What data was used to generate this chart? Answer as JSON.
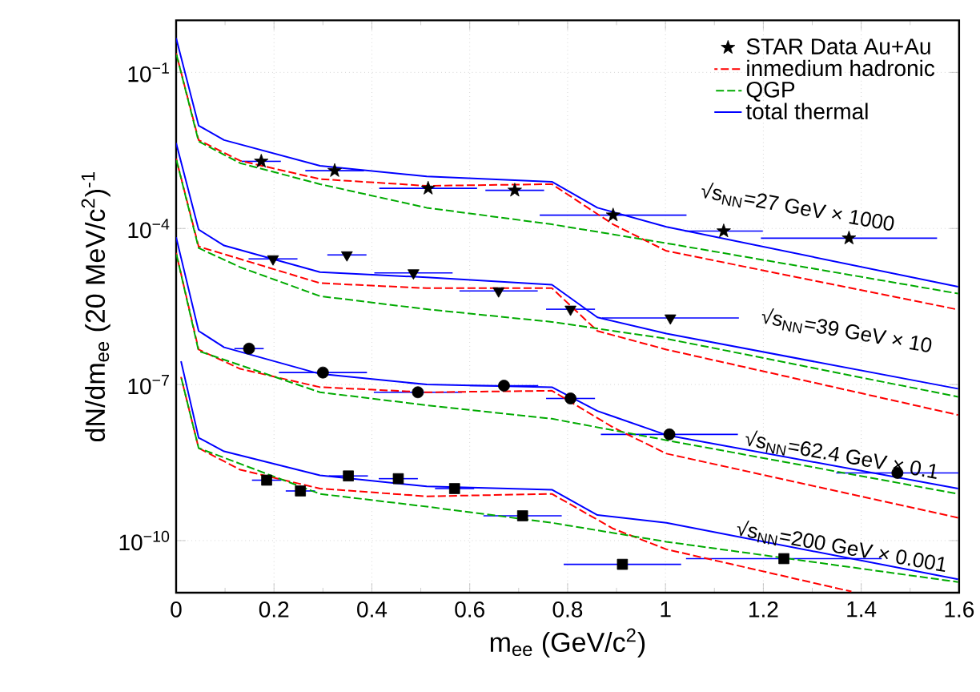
{
  "chart_data": {
    "type": "scatter",
    "xlabel": "m$_{ee}$ (GeV/c$^{2}$)",
    "ylabel": "dN/dm$_{ee}$ (20 MeV/c$^{2}$)$^{-1}$",
    "log": "y",
    "grid": true,
    "legend": "top right",
    "xlim": [
      0,
      1.6
    ],
    "ylim": [
      1e-11,
      1
    ],
    "xticks": [
      0,
      0.2,
      0.4,
      0.6,
      0.8,
      1,
      1.2,
      1.4,
      1.6
    ],
    "yticks": [
      {
        "value": 0.1,
        "label": "10$^{−1}$"
      },
      {
        "value": 0.0001,
        "label": "10$^{−4}$"
      },
      {
        "value": 1e-07,
        "label": "10$^{−7}$"
      },
      {
        "value": 1e-10,
        "label": "10$^{−10}$"
      }
    ],
    "series": [
      {
        "name": "STAR Data Au+Au",
        "color": "#000000",
        "marker": "star",
        "x": [
          0.174,
          0.324,
          0.515,
          0.692,
          0.893,
          1.119,
          1.375
        ],
        "values": [
          0.00195,
          0.00129,
          0.00059,
          0.00054,
          0.00018,
          8.9e-05,
          6.5e-05
        ],
        "xerrors": [
          0.04,
          0.06,
          0.1,
          0.06,
          0.15,
          0.08,
          0.18
        ]
      },
      {
        "color": "#000000",
        "marker": "triangle",
        "x": [
          0.198,
          0.349,
          0.485,
          0.659,
          0.806,
          1.01
        ],
        "values": [
          2.6e-05,
          3.1e-05,
          1.4e-05,
          6.3e-06,
          2.8e-06,
          1.9e-06
        ],
        "xerrors": [
          0.05,
          0.04,
          0.08,
          0.08,
          0.05,
          0.14
        ]
      },
      {
        "color": "#000000",
        "marker": "circle",
        "x": [
          0.149,
          0.3,
          0.494,
          0.67,
          0.806,
          1.008,
          1.474
        ],
        "values": [
          4.9e-07,
          1.7e-07,
          7.1e-08,
          9.5e-08,
          5.4e-08,
          1.1e-08,
          2e-09
        ],
        "xerrors": [
          0.03,
          0.09,
          0.09,
          0.07,
          0.05,
          0.14,
          0.125
        ]
      },
      {
        "color": "#000000",
        "marker": "square",
        "x": [
          0.185,
          0.254,
          0.352,
          0.454,
          0.569,
          0.708,
          0.912,
          1.242
        ],
        "values": [
          1.45e-09,
          9e-10,
          1.75e-09,
          1.55e-09,
          1e-09,
          3e-10,
          3.5e-11,
          4.5e-11
        ],
        "xerrors": [
          0.03,
          0.03,
          0.04,
          0.04,
          0.04,
          0.08,
          0.12,
          0.2
        ]
      },
      {
        "name": "inmedium hadronic",
        "type": "line",
        "color": "#ff0000",
        "line_style": "dashed",
        "x": [
          0,
          0.046,
          0.131,
          0.294,
          0.512,
          0.768,
          0.893,
          1.002,
          1.598
        ],
        "values": [
          0.234,
          0.005,
          0.002,
          0.00089,
          0.00066,
          0.00071,
          0.00012,
          3.7e-05,
          2.75e-06
        ]
      },
      {
        "name": "QGP",
        "type": "line",
        "color": "#00aa00",
        "line_style": "dashed",
        "x": [
          0,
          0.046,
          0.131,
          0.294,
          0.512,
          0.768,
          1.002,
          1.598
        ],
        "values": [
          0.234,
          0.0047,
          0.0018,
          0.00071,
          0.00025,
          0.00012,
          5.2e-05,
          5.6e-06
        ]
      },
      {
        "name": "total thermal",
        "type": "line",
        "color": "#0000ff",
        "line_style": "solid",
        "x": [
          0,
          0.046,
          0.098,
          0.294,
          0.512,
          0.768,
          0.861,
          1.002,
          1.598
        ],
        "values": [
          0.457,
          0.0095,
          0.005,
          0.0016,
          0.001,
          0.00079,
          0.00025,
          0.000107,
          7.6e-06
        ]
      },
      {
        "type": "line",
        "color": "#ff0000",
        "line_style": "dashed",
        "x": [
          0,
          0.046,
          0.294,
          0.512,
          0.768,
          0.861,
          1.002,
          1.598
        ],
        "values": [
          0.0022,
          4.5e-05,
          8.9e-06,
          7.1e-06,
          7.1e-06,
          1.07e-06,
          4.7e-07,
          2.6e-08
        ]
      },
      {
        "type": "line",
        "color": "#00aa00",
        "line_style": "dashed",
        "x": [
          0,
          0.046,
          0.131,
          0.294,
          0.512,
          0.768,
          1.002,
          1.598
        ],
        "values": [
          0.0022,
          4.2e-05,
          1.8e-05,
          5e-06,
          2.8e-06,
          1.6e-06,
          7.6e-07,
          5.8e-08
        ]
      },
      {
        "type": "line",
        "color": "#0000ff",
        "line_style": "solid",
        "x": [
          0,
          0.046,
          0.098,
          0.294,
          0.512,
          0.768,
          0.861,
          1.002,
          1.598
        ],
        "values": [
          0.0044,
          9.5e-05,
          4.7e-05,
          1.45e-05,
          1.15e-05,
          8.3e-06,
          1.95e-06,
          9.5e-07,
          8.3e-08
        ]
      },
      {
        "type": "line",
        "color": "#ff0000",
        "line_style": "dashed",
        "x": [
          0,
          0.046,
          0.131,
          0.294,
          0.512,
          0.768,
          0.893,
          1.002,
          1.598
        ],
        "values": [
          3.4e-05,
          4.7e-07,
          2e-07,
          8.9e-08,
          7.1e-08,
          7.6e-08,
          1.5e-08,
          4.7e-09,
          2.75e-10
        ]
      },
      {
        "type": "line",
        "color": "#00aa00",
        "line_style": "dashed",
        "x": [
          0,
          0.046,
          0.294,
          0.512,
          0.768,
          1.002,
          1.598
        ],
        "values": [
          3.4e-05,
          4.4e-07,
          7.1e-08,
          4e-08,
          2.2e-08,
          8.5e-09,
          7.9e-10
        ]
      },
      {
        "type": "line",
        "color": "#0000ff",
        "line_style": "solid",
        "x": [
          0,
          0.046,
          0.098,
          0.294,
          0.512,
          0.768,
          0.861,
          1.002,
          1.598
        ],
        "values": [
          6.8e-05,
          1.07e-06,
          5.2e-07,
          1.6e-07,
          1e-07,
          8.9e-08,
          3.1e-08,
          1.07e-08,
          1e-09
        ]
      },
      {
        "type": "line",
        "color": "#ff0000",
        "line_style": "dashed",
        "x": [
          0.01,
          0.046,
          0.131,
          0.294,
          0.512,
          0.768,
          0.893,
          1.002,
          1.38
        ],
        "values": [
          1.4e-07,
          6e-09,
          2.3e-09,
          1e-09,
          7.1e-10,
          7.9e-10,
          1.7e-10,
          6.8e-11,
          1.05e-11
        ]
      },
      {
        "type": "line",
        "color": "#00aa00",
        "line_style": "dashed",
        "x": [
          0.01,
          0.046,
          0.294,
          0.512,
          0.768,
          1.002,
          1.598
        ],
        "values": [
          1.4e-07,
          6e-09,
          7.9e-10,
          4.5e-10,
          2.2e-10,
          9.5e-11,
          1.6e-11
        ]
      },
      {
        "type": "line",
        "color": "#0000ff",
        "line_style": "solid",
        "x": [
          0.01,
          0.046,
          0.098,
          0.294,
          0.512,
          0.768,
          0.861,
          1.002,
          1.598
        ],
        "values": [
          2.8e-07,
          9.5e-09,
          5.2e-09,
          1.8e-09,
          1.1e-09,
          9.5e-10,
          3.1e-10,
          2.2e-10,
          1.8e-11
        ]
      }
    ],
    "annotations": [
      "√s$_{NN}$=27 GeV × 1000",
      "√s$_{NN}$=39 GeV × 10",
      "√s$_{NN}$=62.4 GeV × 0.1",
      "√s$_{NN}$=200 GeV × 0.001"
    ]
  }
}
